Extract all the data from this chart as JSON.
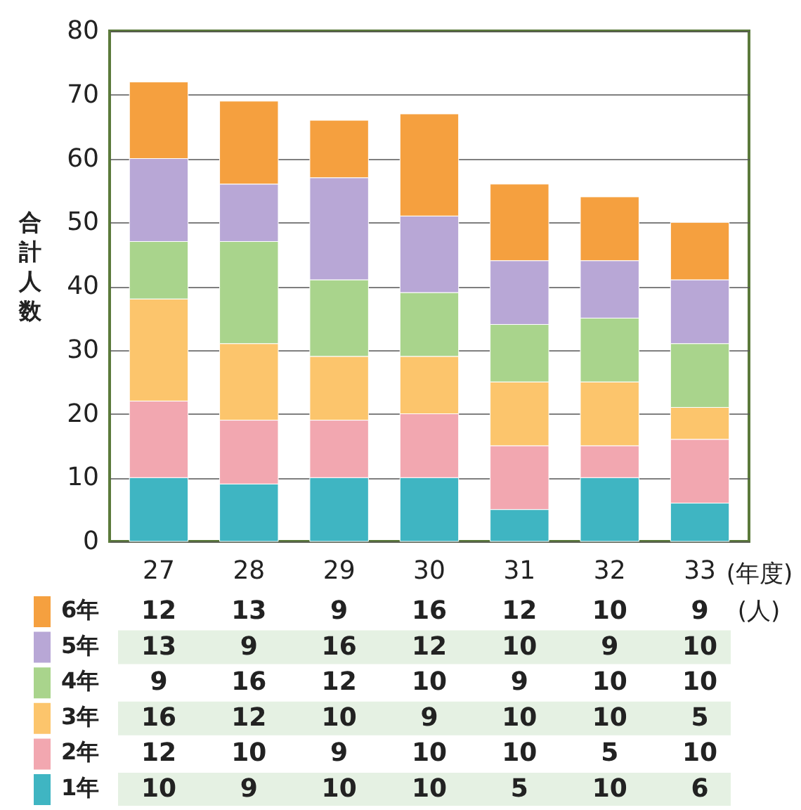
{
  "chart_data": {
    "type": "bar",
    "stacked": true,
    "xlabel": "(年度)",
    "ylabel": "合計人数",
    "annotations": [
      "(人)"
    ],
    "categories": [
      "27",
      "28",
      "29",
      "30",
      "31",
      "32",
      "33"
    ],
    "series": [
      {
        "name": "1年",
        "color": "#3fb5c2",
        "values": [
          10,
          9,
          10,
          10,
          5,
          10,
          6
        ]
      },
      {
        "name": "2年",
        "color": "#f2a7b0",
        "values": [
          12,
          10,
          9,
          10,
          10,
          5,
          10
        ]
      },
      {
        "name": "3年",
        "color": "#fcc56c",
        "values": [
          16,
          12,
          10,
          9,
          10,
          10,
          5
        ]
      },
      {
        "name": "4年",
        "color": "#a9d48c",
        "values": [
          9,
          16,
          12,
          10,
          9,
          10,
          10
        ]
      },
      {
        "name": "5年",
        "color": "#b8a7d6",
        "values": [
          13,
          9,
          16,
          12,
          10,
          9,
          10
        ]
      },
      {
        "name": "6年",
        "color": "#f5a03f",
        "values": [
          12,
          13,
          9,
          16,
          12,
          10,
          9
        ]
      }
    ],
    "ylim": [
      0,
      80
    ],
    "yticks": [
      0,
      10,
      20,
      30,
      40,
      50,
      60,
      70,
      80
    ],
    "grid": "y",
    "legend": "bottom",
    "data_labels": true
  }
}
